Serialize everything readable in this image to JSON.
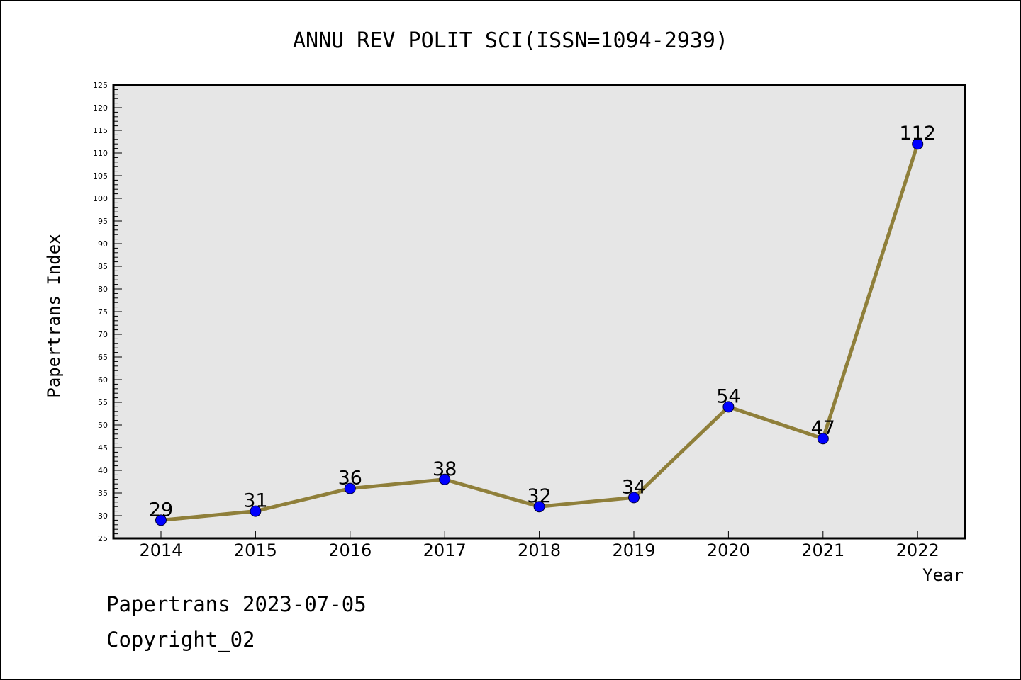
{
  "chart_data": {
    "type": "line",
    "title": "ANNU REV POLIT SCI(ISSN=1094-2939)",
    "xlabel": "Year",
    "ylabel": "Papertrans Index",
    "categories": [
      "2014",
      "2015",
      "2016",
      "2017",
      "2018",
      "2019",
      "2020",
      "2021",
      "2022"
    ],
    "series": [
      {
        "values": [
          29,
          31,
          36,
          38,
          32,
          34,
          54,
          47,
          112
        ]
      }
    ],
    "ylim": [
      25,
      125
    ],
    "y_tick_step": 5,
    "line_color": "#8f7f3a",
    "marker_color": "#0000ff",
    "plot_background": "#e6e6e6",
    "grid": false,
    "data_labels": true
  },
  "footer": {
    "line1": "Papertrans 2023-07-05",
    "line2": "Copyright_02"
  }
}
